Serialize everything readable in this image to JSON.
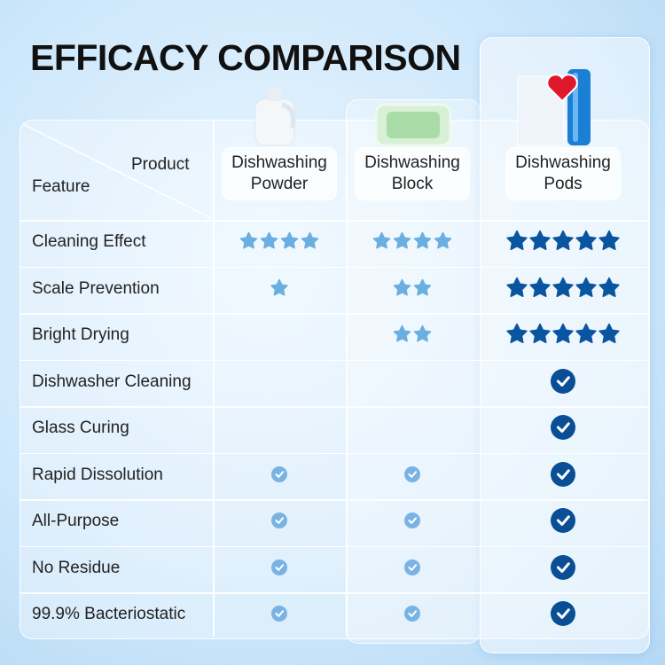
{
  "title": "EFFICACY COMPARISON",
  "header": {
    "corner_top": "Product",
    "corner_bottom": "Feature",
    "products": [
      "Dishwashing Powder",
      "Dishwashing Block",
      "Dishwashing Pods"
    ]
  },
  "rows": [
    {
      "feature": "Cleaning Effect",
      "stars": [
        4,
        4,
        5
      ]
    },
    {
      "feature": "Scale Prevention",
      "stars": [
        1,
        2,
        5
      ]
    },
    {
      "feature": "Bright Drying",
      "stars": [
        0,
        2,
        5
      ]
    },
    {
      "feature": "Dishwasher Cleaning",
      "checks": [
        false,
        false,
        true
      ]
    },
    {
      "feature": "Glass Curing",
      "checks": [
        false,
        false,
        true
      ]
    },
    {
      "feature": "Rapid Dissolution",
      "checks": [
        true,
        true,
        true
      ]
    },
    {
      "feature": "All-Purpose",
      "checks": [
        true,
        true,
        true
      ]
    },
    {
      "feature": "No Residue",
      "checks": [
        true,
        true,
        true
      ]
    },
    {
      "feature": "99.9% Bacteriostatic",
      "checks": [
        true,
        true,
        true
      ]
    }
  ]
}
